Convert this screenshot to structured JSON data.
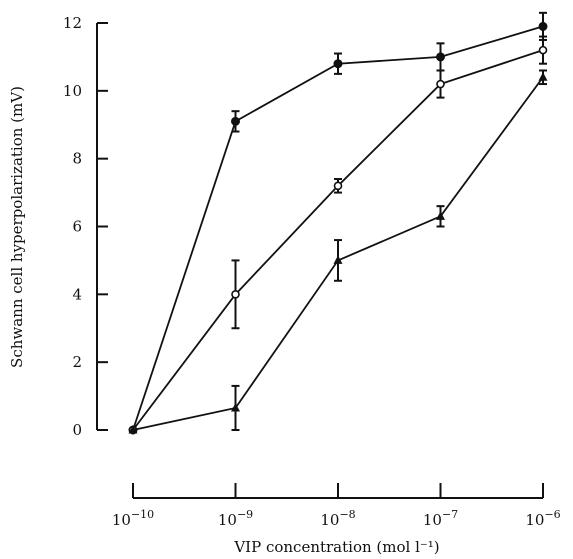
{
  "chart_data": {
    "type": "line",
    "title": "",
    "xlabel": "VIP concentration (mol l⁻¹)",
    "ylabel": "Schwann cell hyperpolarization (mV)",
    "x_scale": "log",
    "x": [
      1e-10,
      1e-09,
      1e-08,
      1e-07,
      1e-06
    ],
    "x_tick_labels": [
      {
        "base": "10",
        "exp": "−10"
      },
      {
        "base": "10",
        "exp": "−9"
      },
      {
        "base": "10",
        "exp": "−8"
      },
      {
        "base": "10",
        "exp": "−7"
      },
      {
        "base": "10",
        "exp": "−6"
      }
    ],
    "ylim": [
      0,
      12
    ],
    "y_ticks": [
      0,
      2,
      4,
      6,
      8,
      10,
      12
    ],
    "grid": false,
    "legend": "none",
    "series": [
      {
        "marker": "filled-circle",
        "values": [
          0,
          9.1,
          10.8,
          11.0,
          11.9
        ],
        "errors": [
          0,
          0.3,
          0.3,
          0.4,
          0.4
        ]
      },
      {
        "marker": "open-circle",
        "values": [
          0,
          4.0,
          7.2,
          10.2,
          11.2
        ],
        "errors": [
          0,
          1.0,
          0.2,
          0.4,
          0.4
        ]
      },
      {
        "marker": "filled-triangle",
        "values": [
          0,
          0.65,
          5.0,
          6.3,
          10.4
        ],
        "errors": [
          0,
          0.65,
          0.6,
          0.3,
          0.2
        ]
      }
    ]
  }
}
